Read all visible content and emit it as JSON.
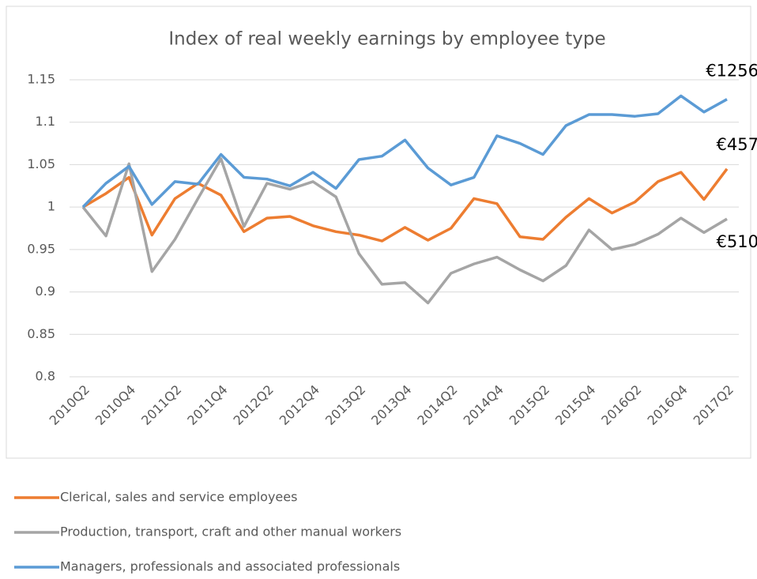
{
  "chart_data": {
    "type": "line",
    "title": "Index of real weekly earnings by employee type",
    "categories": [
      "2010Q2",
      null,
      "2010Q4",
      null,
      "2011Q2",
      null,
      "2011Q4",
      null,
      "2012Q2",
      null,
      "2012Q4",
      null,
      "2013Q2",
      null,
      "2013Q4",
      null,
      "2014Q2",
      null,
      "2014Q4",
      null,
      "2015Q2",
      null,
      "2015Q4",
      null,
      "2016Q2",
      null,
      "2016Q4",
      null,
      "2017Q2"
    ],
    "series": [
      {
        "name": "Clerical, sales and service employees",
        "color": "#ed7d31",
        "values": [
          1.0,
          1.016,
          1.035,
          0.967,
          1.01,
          1.028,
          1.014,
          0.971,
          0.987,
          0.989,
          0.978,
          0.971,
          0.967,
          0.96,
          0.976,
          0.961,
          0.975,
          1.01,
          1.004,
          0.965,
          0.962,
          0.988,
          1.01,
          0.993,
          1.006,
          1.03,
          1.041,
          1.009,
          1.045
        ]
      },
      {
        "name": "Production, transport, craft and other manual workers",
        "color": "#a5a5a5",
        "values": [
          1.0,
          0.966,
          1.051,
          0.924,
          0.962,
          1.01,
          1.057,
          0.977,
          1.028,
          1.021,
          1.03,
          1.012,
          0.945,
          0.909,
          0.911,
          0.887,
          0.922,
          0.933,
          0.941,
          0.926,
          0.913,
          0.931,
          0.973,
          0.95,
          0.956,
          0.968,
          0.987,
          0.97,
          0.986
        ]
      },
      {
        "name": "Managers, professionals and associated professionals",
        "color": "#5b9bd5",
        "values": [
          1.0,
          1.028,
          1.048,
          1.003,
          1.03,
          1.027,
          1.062,
          1.035,
          1.033,
          1.025,
          1.041,
          1.022,
          1.056,
          1.06,
          1.079,
          1.046,
          1.026,
          1.035,
          1.084,
          1.075,
          1.062,
          1.096,
          1.109,
          1.109,
          1.107,
          1.11,
          1.131,
          1.112,
          1.127
        ]
      }
    ],
    "annotations": [
      "€457",
      "€510",
      "€1256"
    ],
    "ylim": [
      0.8,
      1.15
    ],
    "yticks": [
      0.8,
      0.85,
      0.9,
      0.95,
      1,
      1.05,
      1.1,
      1.15
    ],
    "grid": true
  }
}
